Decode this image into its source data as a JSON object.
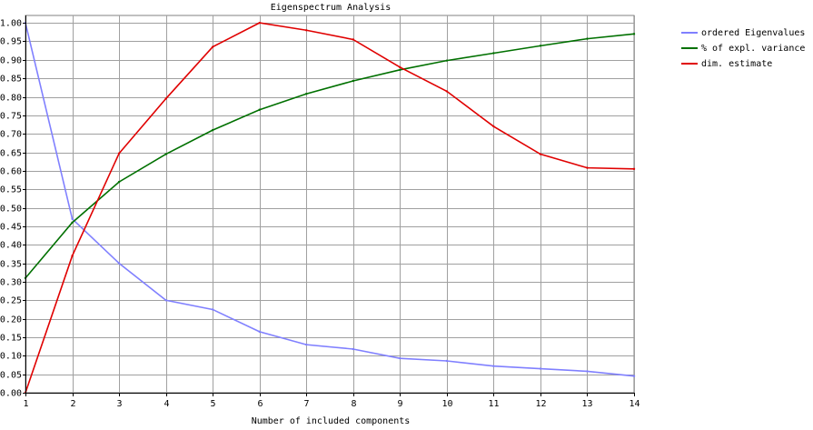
{
  "chart_data": {
    "type": "line",
    "title": "Eigenspectrum Analysis",
    "xlabel": "Number of included components",
    "ylabel": "",
    "x": [
      1,
      2,
      3,
      4,
      5,
      6,
      7,
      8,
      9,
      10,
      11,
      12,
      13,
      14
    ],
    "xlim": [
      1,
      14
    ],
    "ylim": [
      0,
      1.02
    ],
    "x_ticks": [
      "1",
      "2",
      "3",
      "4",
      "5",
      "6",
      "7",
      "8",
      "9",
      "10",
      "11",
      "12",
      "13",
      "14"
    ],
    "y_ticks": [
      "0.00",
      "0.05",
      "0.10",
      "0.15",
      "0.20",
      "0.25",
      "0.30",
      "0.35",
      "0.40",
      "0.45",
      "0.50",
      "0.55",
      "0.60",
      "0.65",
      "0.70",
      "0.75",
      "0.80",
      "0.85",
      "0.90",
      "0.95",
      "1.00"
    ],
    "grid": true,
    "legend_position": "top-right",
    "series": [
      {
        "name": "ordered Eigenvalues",
        "color": "#8080ff",
        "values": [
          1.0,
          0.47,
          0.35,
          0.25,
          0.225,
          0.165,
          0.13,
          0.118,
          0.093,
          0.086,
          0.072,
          0.065,
          0.058,
          0.045
        ]
      },
      {
        "name": "% of expl. variance",
        "color": "#007000",
        "values": [
          0.31,
          0.46,
          0.57,
          0.645,
          0.71,
          0.765,
          0.808,
          0.843,
          0.873,
          0.898,
          0.918,
          0.938,
          0.957,
          0.97
        ]
      },
      {
        "name": "dim. estimate",
        "color": "#e00000",
        "values": [
          0.0,
          0.37,
          0.647,
          0.795,
          0.935,
          1.0,
          0.98,
          0.955,
          0.88,
          0.815,
          0.72,
          0.645,
          0.608,
          0.605
        ]
      }
    ]
  }
}
